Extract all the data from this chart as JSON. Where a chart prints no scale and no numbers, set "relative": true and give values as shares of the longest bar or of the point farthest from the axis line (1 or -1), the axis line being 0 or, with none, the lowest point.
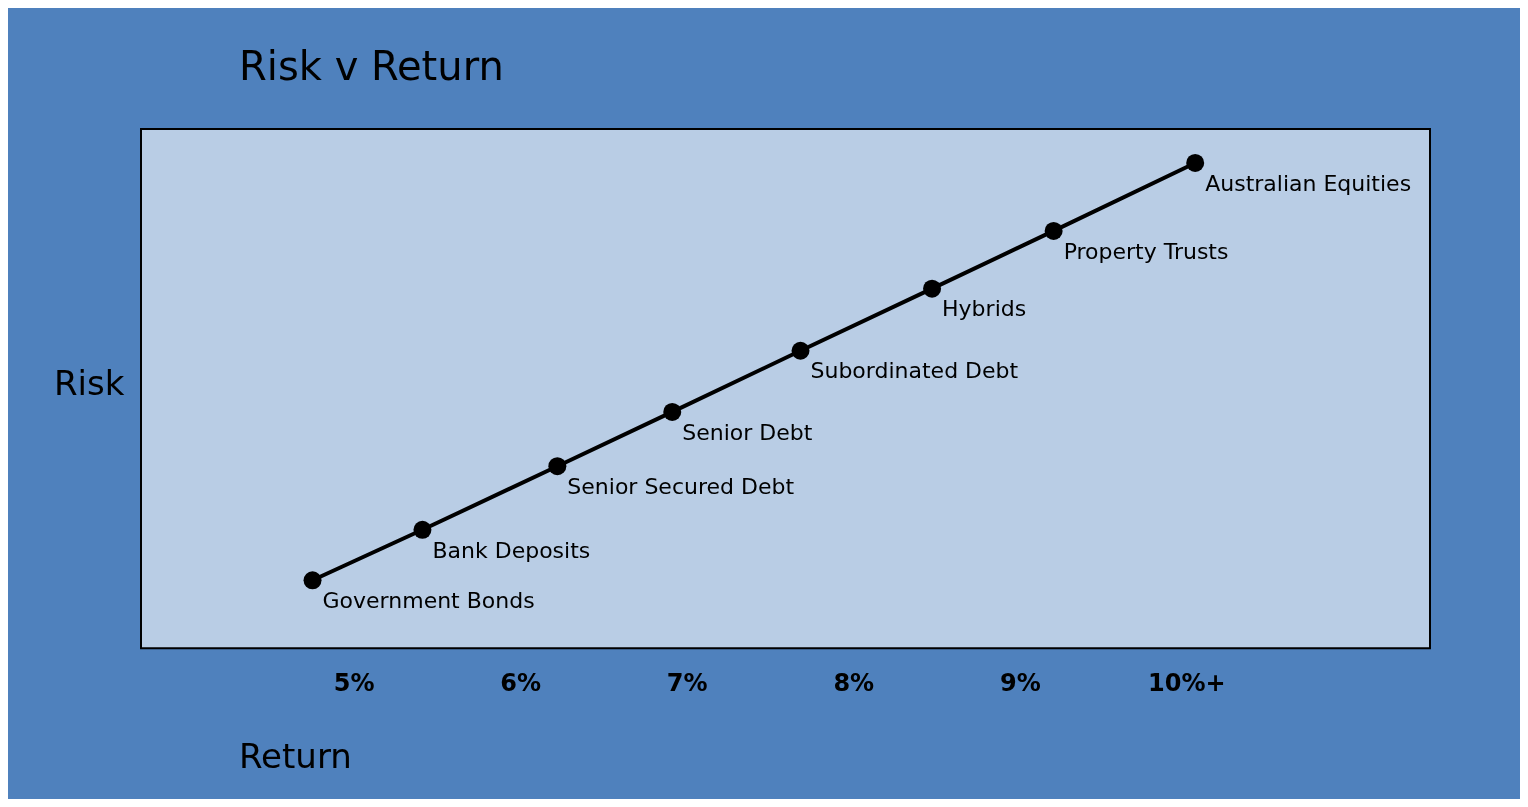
{
  "chart_data": {
    "type": "line",
    "title": "Risk v Return",
    "xlabel": "Return",
    "ylabel": "Risk",
    "relative": true,
    "marker": "circle",
    "line_style": "solid",
    "grid": false,
    "legend": false,
    "x": [
      4.75,
      5.41,
      6.22,
      6.91,
      7.68,
      8.47,
      9.2,
      10.05
    ],
    "xlim": [
      3.72,
      11.46
    ],
    "xticks": [
      {
        "value": 5,
        "label": "5%"
      },
      {
        "value": 6,
        "label": "6%"
      },
      {
        "value": 7,
        "label": "7%"
      },
      {
        "value": 8,
        "label": "8%"
      },
      {
        "value": 9,
        "label": "9%"
      },
      {
        "value": 10,
        "label": "10%+"
      }
    ],
    "series": [
      {
        "color": "#000000",
        "values": [
          0.14,
          0.244,
          0.375,
          0.487,
          0.613,
          0.741,
          0.86,
          1
        ]
      }
    ],
    "annotations": [
      {
        "text": "Government Bonds",
        "x": 4.75,
        "y": 0.14
      },
      {
        "text": "Bank Deposits",
        "x": 5.41,
        "y": 0.244
      },
      {
        "text": "Senior Secured Debt",
        "x": 6.22,
        "y": 0.375
      },
      {
        "text": "Senior Debt",
        "x": 6.91,
        "y": 0.487
      },
      {
        "text": "Subordinated Debt",
        "x": 7.68,
        "y": 0.613
      },
      {
        "text": "Hybrids",
        "x": 8.47,
        "y": 0.741
      },
      {
        "text": "Property Trusts",
        "x": 9.2,
        "y": 0.86
      },
      {
        "text": "Australian Equities",
        "x": 10.05,
        "y": 1
      }
    ]
  }
}
